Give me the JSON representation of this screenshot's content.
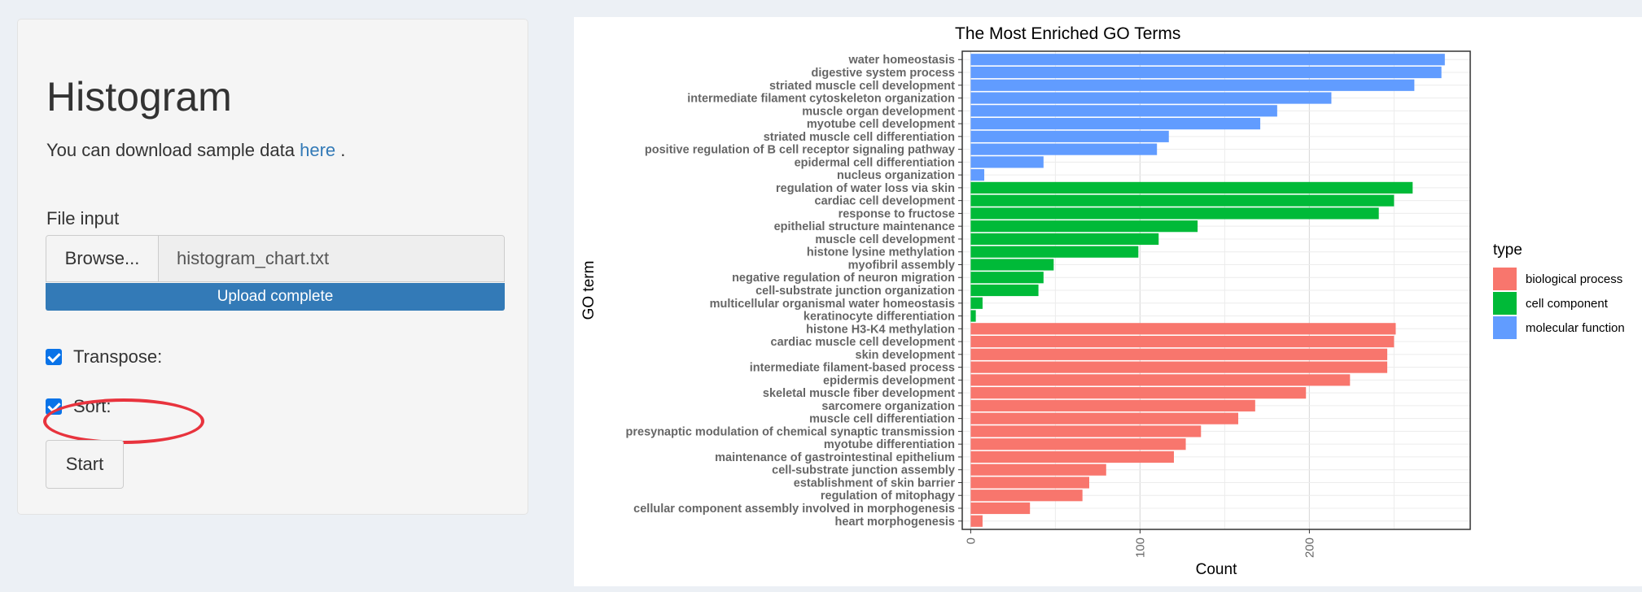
{
  "sidebar": {
    "title": "Histogram",
    "subtitle_prefix": "You can download sample data",
    "subtitle_link": "here",
    "subtitle_suffix": ".",
    "file_label": "File input",
    "browse_label": "Browse...",
    "file_name": "histogram_chart.txt",
    "upload_status": "Upload complete",
    "progress": 1.0,
    "transpose_label": "Transpose:",
    "transpose_checked": true,
    "sort_label": "Sort:",
    "sort_checked": true,
    "start_label": "Start",
    "highlight_color": "#e8333d",
    "accent": "#337ab7"
  },
  "chart_data": {
    "type": "bar",
    "orientation": "horizontal",
    "title": "The Most Enriched GO Terms",
    "xlabel": "Count",
    "ylabel": "GO term",
    "xlim": [
      -5,
      295
    ],
    "xticks": [
      0,
      100,
      200
    ],
    "grid": true,
    "legend": {
      "title": "type",
      "position": "right",
      "entries": [
        {
          "name": "biological process",
          "color": "#f8766d"
        },
        {
          "name": "cell component",
          "color": "#00ba38"
        },
        {
          "name": "molecular function",
          "color": "#619cff"
        }
      ]
    },
    "bars": [
      {
        "label": "water homeostasis",
        "value": 280,
        "type": "molecular function"
      },
      {
        "label": "digestive system process",
        "value": 278,
        "type": "molecular function"
      },
      {
        "label": "striated muscle cell development",
        "value": 262,
        "type": "molecular function"
      },
      {
        "label": "intermediate filament cytoskeleton organization",
        "value": 213,
        "type": "molecular function"
      },
      {
        "label": "muscle organ development",
        "value": 181,
        "type": "molecular function"
      },
      {
        "label": "myotube cell development",
        "value": 171,
        "type": "molecular function"
      },
      {
        "label": "striated muscle cell differentiation",
        "value": 117,
        "type": "molecular function"
      },
      {
        "label": "positive regulation of B cell receptor signaling pathway",
        "value": 110,
        "type": "molecular function"
      },
      {
        "label": "epidermal cell differentiation",
        "value": 43,
        "type": "molecular function"
      },
      {
        "label": "nucleus organization",
        "value": 8,
        "type": "molecular function"
      },
      {
        "label": "regulation of water loss via skin",
        "value": 261,
        "type": "cell component"
      },
      {
        "label": "cardiac cell development",
        "value": 250,
        "type": "cell component"
      },
      {
        "label": "response to fructose",
        "value": 241,
        "type": "cell component"
      },
      {
        "label": "epithelial structure maintenance",
        "value": 134,
        "type": "cell component"
      },
      {
        "label": "muscle cell development",
        "value": 111,
        "type": "cell component"
      },
      {
        "label": "histone lysine methylation",
        "value": 99,
        "type": "cell component"
      },
      {
        "label": "myofibril assembly",
        "value": 49,
        "type": "cell component"
      },
      {
        "label": "negative regulation of neuron migration",
        "value": 43,
        "type": "cell component"
      },
      {
        "label": "cell-substrate junction organization",
        "value": 40,
        "type": "cell component"
      },
      {
        "label": "multicellular organismal water homeostasis",
        "value": 7,
        "type": "cell component"
      },
      {
        "label": "keratinocyte differentiation",
        "value": 3,
        "type": "cell component"
      },
      {
        "label": "histone H3-K4 methylation",
        "value": 251,
        "type": "biological process"
      },
      {
        "label": "cardiac muscle cell development",
        "value": 250,
        "type": "biological process"
      },
      {
        "label": "skin development",
        "value": 246,
        "type": "biological process"
      },
      {
        "label": "intermediate filament-based process",
        "value": 246,
        "type": "biological process"
      },
      {
        "label": "epidermis development",
        "value": 224,
        "type": "biological process"
      },
      {
        "label": "skeletal muscle fiber development",
        "value": 198,
        "type": "biological process"
      },
      {
        "label": "sarcomere organization",
        "value": 168,
        "type": "biological process"
      },
      {
        "label": "muscle cell differentiation",
        "value": 158,
        "type": "biological process"
      },
      {
        "label": "presynaptic modulation of chemical synaptic transmission",
        "value": 136,
        "type": "biological process"
      },
      {
        "label": "myotube differentiation",
        "value": 127,
        "type": "biological process"
      },
      {
        "label": "maintenance of gastrointestinal epithelium",
        "value": 120,
        "type": "biological process"
      },
      {
        "label": "cell-substrate junction assembly",
        "value": 80,
        "type": "biological process"
      },
      {
        "label": "establishment of skin barrier",
        "value": 70,
        "type": "biological process"
      },
      {
        "label": "regulation of mitophagy",
        "value": 66,
        "type": "biological process"
      },
      {
        "label": "cellular component assembly involved in morphogenesis",
        "value": 35,
        "type": "biological process"
      },
      {
        "label": "heart morphogenesis",
        "value": 7,
        "type": "biological process"
      }
    ]
  }
}
